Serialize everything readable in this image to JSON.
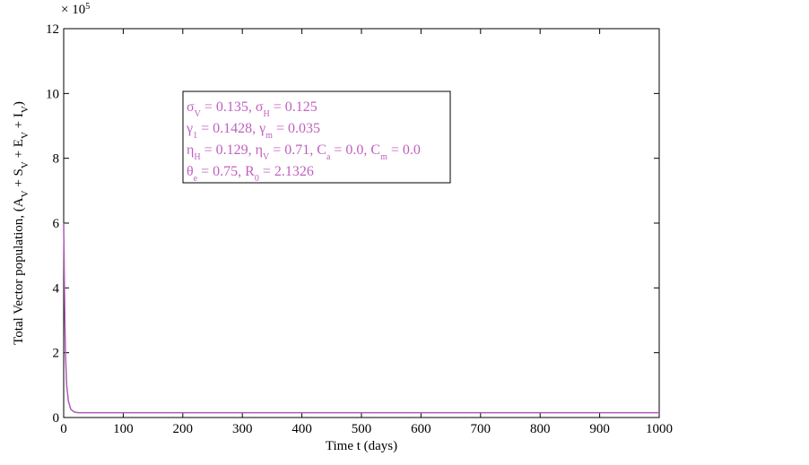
{
  "chart_data": {
    "type": "line",
    "x_label": "Time t (days)",
    "y_label": [
      "Total Vector population, (A",
      {
        "sub": "V"
      },
      " + S",
      {
        "sub": "V"
      },
      " + E",
      {
        "sub": "V"
      },
      " + I",
      {
        "sub": "V"
      },
      ")"
    ],
    "y_multiplier": [
      "× 10",
      {
        "sup": "5"
      }
    ],
    "annotation": [
      [
        "σ",
        {
          "sub": "V"
        },
        " = 0.135, σ",
        {
          "sub": "H"
        },
        " = 0.125"
      ],
      [
        "γ",
        {
          "sub": "1"
        },
        " = 0.1428, γ",
        {
          "sub": "m"
        },
        " = 0.035"
      ],
      [
        "η",
        {
          "sub": "H"
        },
        " = 0.129, η",
        {
          "sub": "V"
        },
        " = 0.71, C",
        {
          "sub": "a"
        },
        " = 0.0, C",
        {
          "sub": "m"
        },
        " = 0.0"
      ],
      [
        "θ",
        {
          "sub": "e"
        },
        " = 0.75, R",
        {
          "sub": "0"
        },
        " = 2.1326"
      ]
    ],
    "x": [
      0,
      1,
      2,
      3,
      5,
      8,
      12,
      18,
      25,
      50,
      100,
      200,
      300,
      400,
      500,
      600,
      700,
      800,
      900,
      1000
    ],
    "values": [
      6,
      4.5,
      3,
      2,
      1,
      0.5,
      0.25,
      0.17,
      0.15,
      0.15,
      0.15,
      0.15,
      0.15,
      0.15,
      0.15,
      0.15,
      0.15,
      0.15,
      0.15,
      0.15
    ],
    "color": "#b05ab8",
    "xlim": [
      0,
      1000
    ],
    "xticks": [
      0,
      100,
      200,
      300,
      400,
      500,
      600,
      700,
      800,
      900,
      1000
    ],
    "ylim": [
      0,
      12
    ],
    "yticks": [
      0,
      2,
      4,
      6,
      8,
      10,
      12
    ]
  }
}
